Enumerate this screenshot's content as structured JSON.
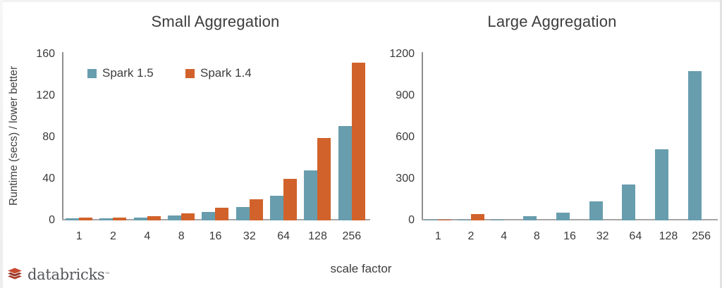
{
  "figure": {
    "xlabel": "scale factor",
    "brand": {
      "name": "databricks",
      "trademark": "™"
    }
  },
  "colors": {
    "spark_1_5": "#689DAE",
    "spark_1_4": "#D1622B",
    "axis": "#9e9e9e",
    "brand_red": "#C14730"
  },
  "legend": [
    {
      "label": "Spark 1.5",
      "color_hex": "#689DAE"
    },
    {
      "label": "Spark 1.4",
      "color_hex": "#D1622B"
    }
  ],
  "chart_data": [
    {
      "type": "bar",
      "title": "Small Aggregation",
      "ylabel": "Runtime (secs) / lower better",
      "xlabel": "scale factor",
      "categories": [
        "1",
        "2",
        "4",
        "8",
        "16",
        "32",
        "64",
        "128",
        "256"
      ],
      "series": [
        {
          "name": "Spark 1.5",
          "color": "#689DAE",
          "values": [
            2,
            2,
            3,
            5,
            8,
            13,
            24,
            48,
            91
          ]
        },
        {
          "name": "Spark 1.4",
          "color": "#D1622B",
          "values": [
            3,
            3,
            4,
            7,
            12,
            20,
            40,
            79,
            152
          ]
        }
      ],
      "ylim": [
        0,
        160
      ],
      "yticks": [
        0,
        40,
        80,
        120,
        160
      ],
      "grid": false,
      "legend_position": "top-left-inside"
    },
    {
      "type": "bar",
      "title": "Large Aggregation",
      "ylabel": "",
      "xlabel": "scale factor",
      "categories": [
        "1",
        "2",
        "4",
        "8",
        "16",
        "32",
        "64",
        "128",
        "256"
      ],
      "series": [
        {
          "name": "Spark 1.5",
          "color": "#689DAE",
          "values": [
            2,
            4,
            7,
            28,
            55,
            135,
            260,
            515,
            1080
          ]
        },
        {
          "name": "Spark 1.4",
          "color": "#D1622B",
          "values": [
            5,
            48,
            0,
            0,
            0,
            0,
            0,
            0,
            0
          ]
        }
      ],
      "ylim": [
        0,
        1200
      ],
      "yticks": [
        0,
        300,
        600,
        900,
        1200
      ],
      "grid": false,
      "legend_position": "none"
    }
  ]
}
